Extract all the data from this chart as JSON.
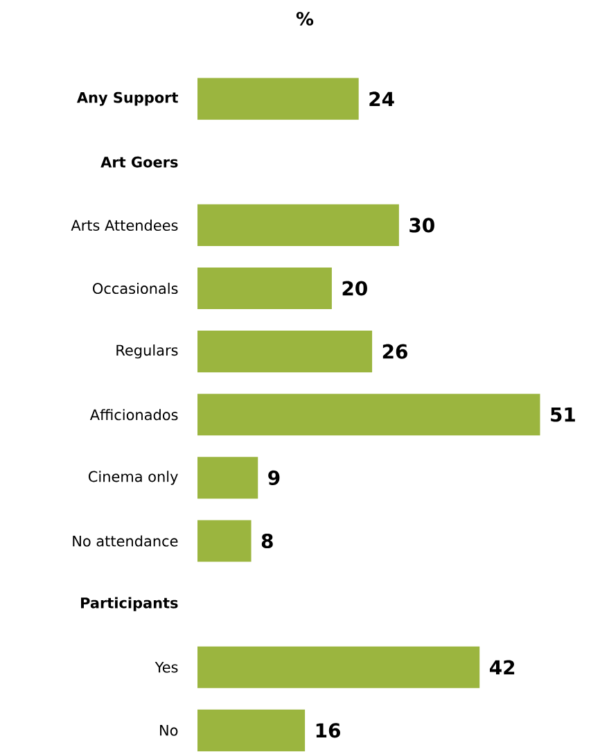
{
  "chart_data": {
    "type": "bar",
    "orientation": "horizontal",
    "title": "%",
    "categories": [
      "**Any Support**",
      "**Art Goers**",
      "Arts Attendees",
      "Occasionals",
      "Regulars",
      "Afficionados",
      "Cinema only",
      "No attendance",
      "**Participants**",
      "Yes",
      "No"
    ],
    "values": [
      24,
      null,
      30,
      20,
      26,
      51,
      9,
      8,
      null,
      42,
      16
    ],
    "color": "#9bb53f",
    "data_labels": true
  }
}
